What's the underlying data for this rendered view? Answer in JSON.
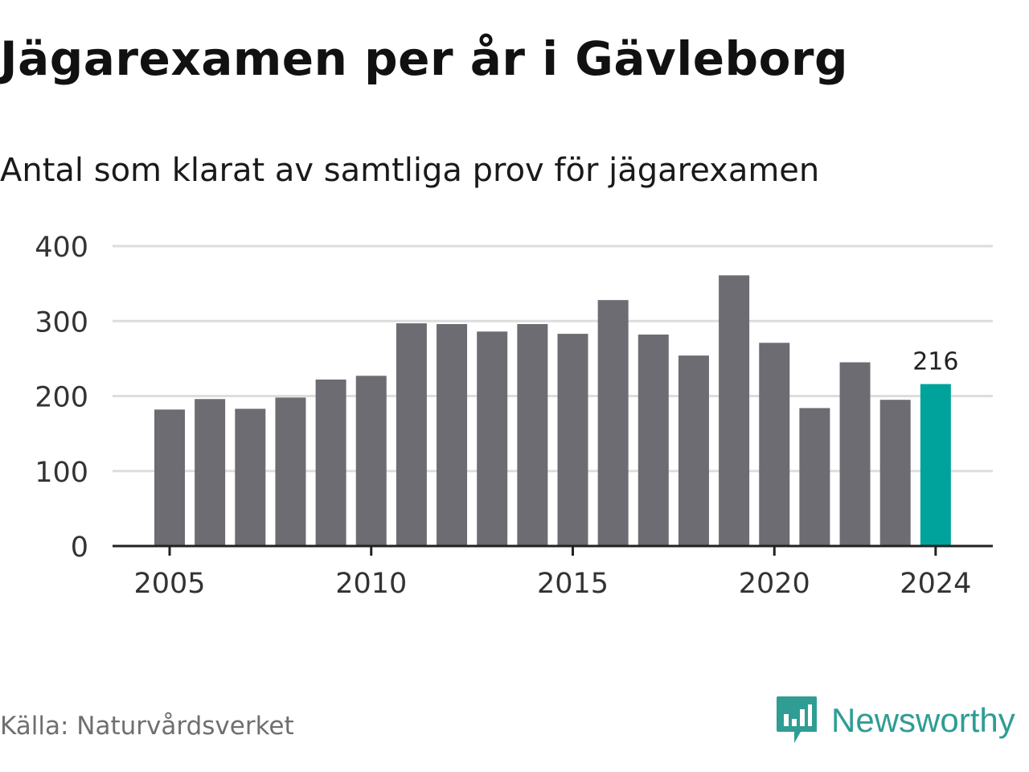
{
  "title": "Jägarexamen per år i Gävleborg",
  "subtitle": "Antal som klarat av samtliga prov för jägarexamen",
  "source": "Källa: Naturvårdsverket",
  "brand": {
    "name": "Newsworthy",
    "icon": "newsworthy-logo-icon",
    "color": "#2f9d94"
  },
  "colors": {
    "bar": "#6d6c72",
    "highlight": "#00a39b",
    "grid": "#dddddd",
    "axis": "#222222",
    "text": "#333333"
  },
  "chart_data": {
    "type": "bar",
    "categories": [
      "2005",
      "2006",
      "2007",
      "2008",
      "2009",
      "2010",
      "2011",
      "2012",
      "2013",
      "2014",
      "2015",
      "2016",
      "2017",
      "2018",
      "2019",
      "2020",
      "2021",
      "2022",
      "2023",
      "2024"
    ],
    "values": [
      182,
      196,
      183,
      198,
      222,
      227,
      297,
      296,
      286,
      296,
      283,
      328,
      282,
      254,
      361,
      271,
      184,
      245,
      195,
      216
    ],
    "highlight_index": 19,
    "data_labels": [
      {
        "index": 19,
        "text": "216"
      }
    ],
    "ylim": [
      0,
      400
    ],
    "yticks": [
      0,
      100,
      200,
      300,
      400
    ],
    "xticks": [
      "2005",
      "2010",
      "2015",
      "2020",
      "2024"
    ],
    "grid": true,
    "legend": "none"
  }
}
